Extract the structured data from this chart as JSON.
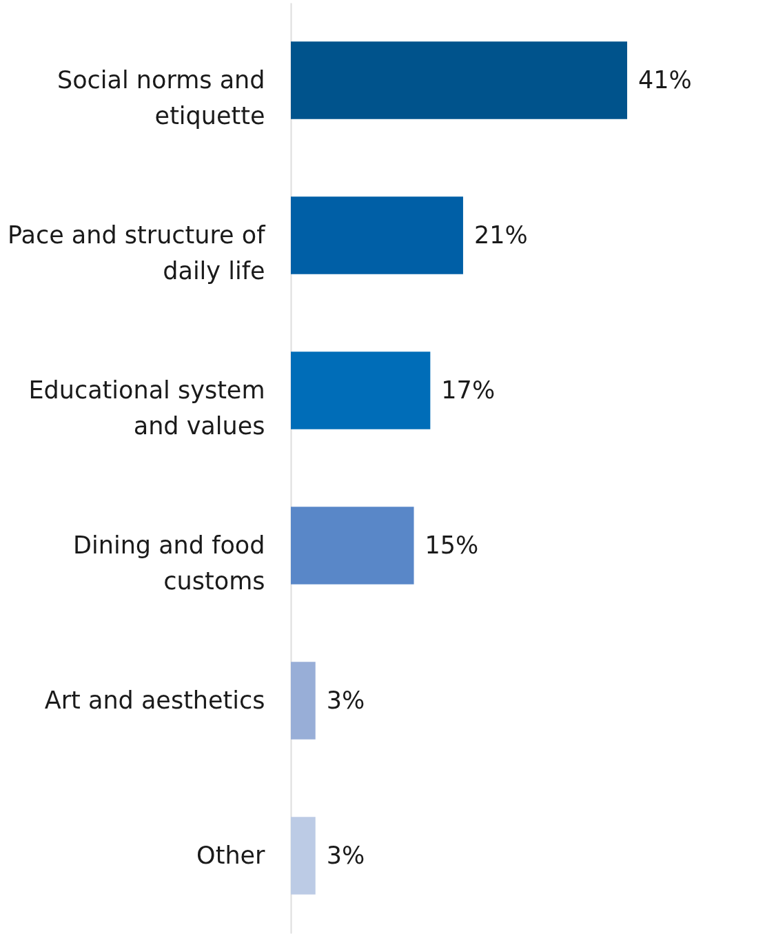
{
  "chart_data": {
    "type": "bar",
    "orientation": "horizontal",
    "categories": [
      "Social norms and etiquette",
      "Pace and structure of daily life",
      "Educational system and values",
      "Dining and food customs",
      "Art and aesthetics",
      "Other"
    ],
    "values": [
      41,
      21,
      17,
      15,
      3,
      3
    ],
    "colors": [
      "#00538c",
      "#005fa6",
      "#006db8",
      "#5987c8",
      "#98aed7",
      "#bccbe5"
    ],
    "value_labels": [
      "41%",
      "21%",
      "17%",
      "15%",
      "3%",
      "3%"
    ]
  }
}
